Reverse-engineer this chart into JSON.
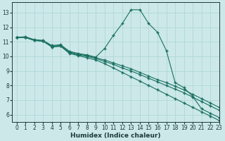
{
  "xlabel": "Humidex (Indice chaleur)",
  "xlim": [
    -0.5,
    23
  ],
  "ylim": [
    5.5,
    13.7
  ],
  "yticks": [
    6,
    7,
    8,
    9,
    10,
    11,
    12,
    13
  ],
  "xticks": [
    0,
    1,
    2,
    3,
    4,
    5,
    6,
    7,
    8,
    9,
    10,
    11,
    12,
    13,
    14,
    15,
    16,
    17,
    18,
    19,
    20,
    21,
    22,
    23
  ],
  "bg_color": "#cce8e8",
  "grid_color": "#b0d8d8",
  "line_color": "#1a7060",
  "lines": [
    [
      11.3,
      11.35,
      11.15,
      11.1,
      10.75,
      10.8,
      10.35,
      10.2,
      10.1,
      9.95,
      10.55,
      11.45,
      12.25,
      13.2,
      13.2,
      12.25,
      11.65,
      10.4,
      8.2,
      7.85,
      7.25,
      6.4,
      6.1,
      5.8
    ],
    [
      11.3,
      11.3,
      11.1,
      11.05,
      10.65,
      10.7,
      10.2,
      10.05,
      9.9,
      9.75,
      9.5,
      9.2,
      8.9,
      8.6,
      8.3,
      8.0,
      7.7,
      7.4,
      7.1,
      6.8,
      6.5,
      6.2,
      5.9,
      5.6
    ],
    [
      11.3,
      11.3,
      11.1,
      11.05,
      10.65,
      10.7,
      10.25,
      10.1,
      10.0,
      9.85,
      9.65,
      9.45,
      9.2,
      9.0,
      8.75,
      8.5,
      8.25,
      8.0,
      7.75,
      7.5,
      7.2,
      6.9,
      6.6,
      6.3
    ],
    [
      11.3,
      11.3,
      11.1,
      11.05,
      10.7,
      10.75,
      10.3,
      10.15,
      10.05,
      9.9,
      9.75,
      9.55,
      9.35,
      9.15,
      8.9,
      8.65,
      8.4,
      8.2,
      7.95,
      7.7,
      7.4,
      7.1,
      6.8,
      6.5
    ]
  ]
}
